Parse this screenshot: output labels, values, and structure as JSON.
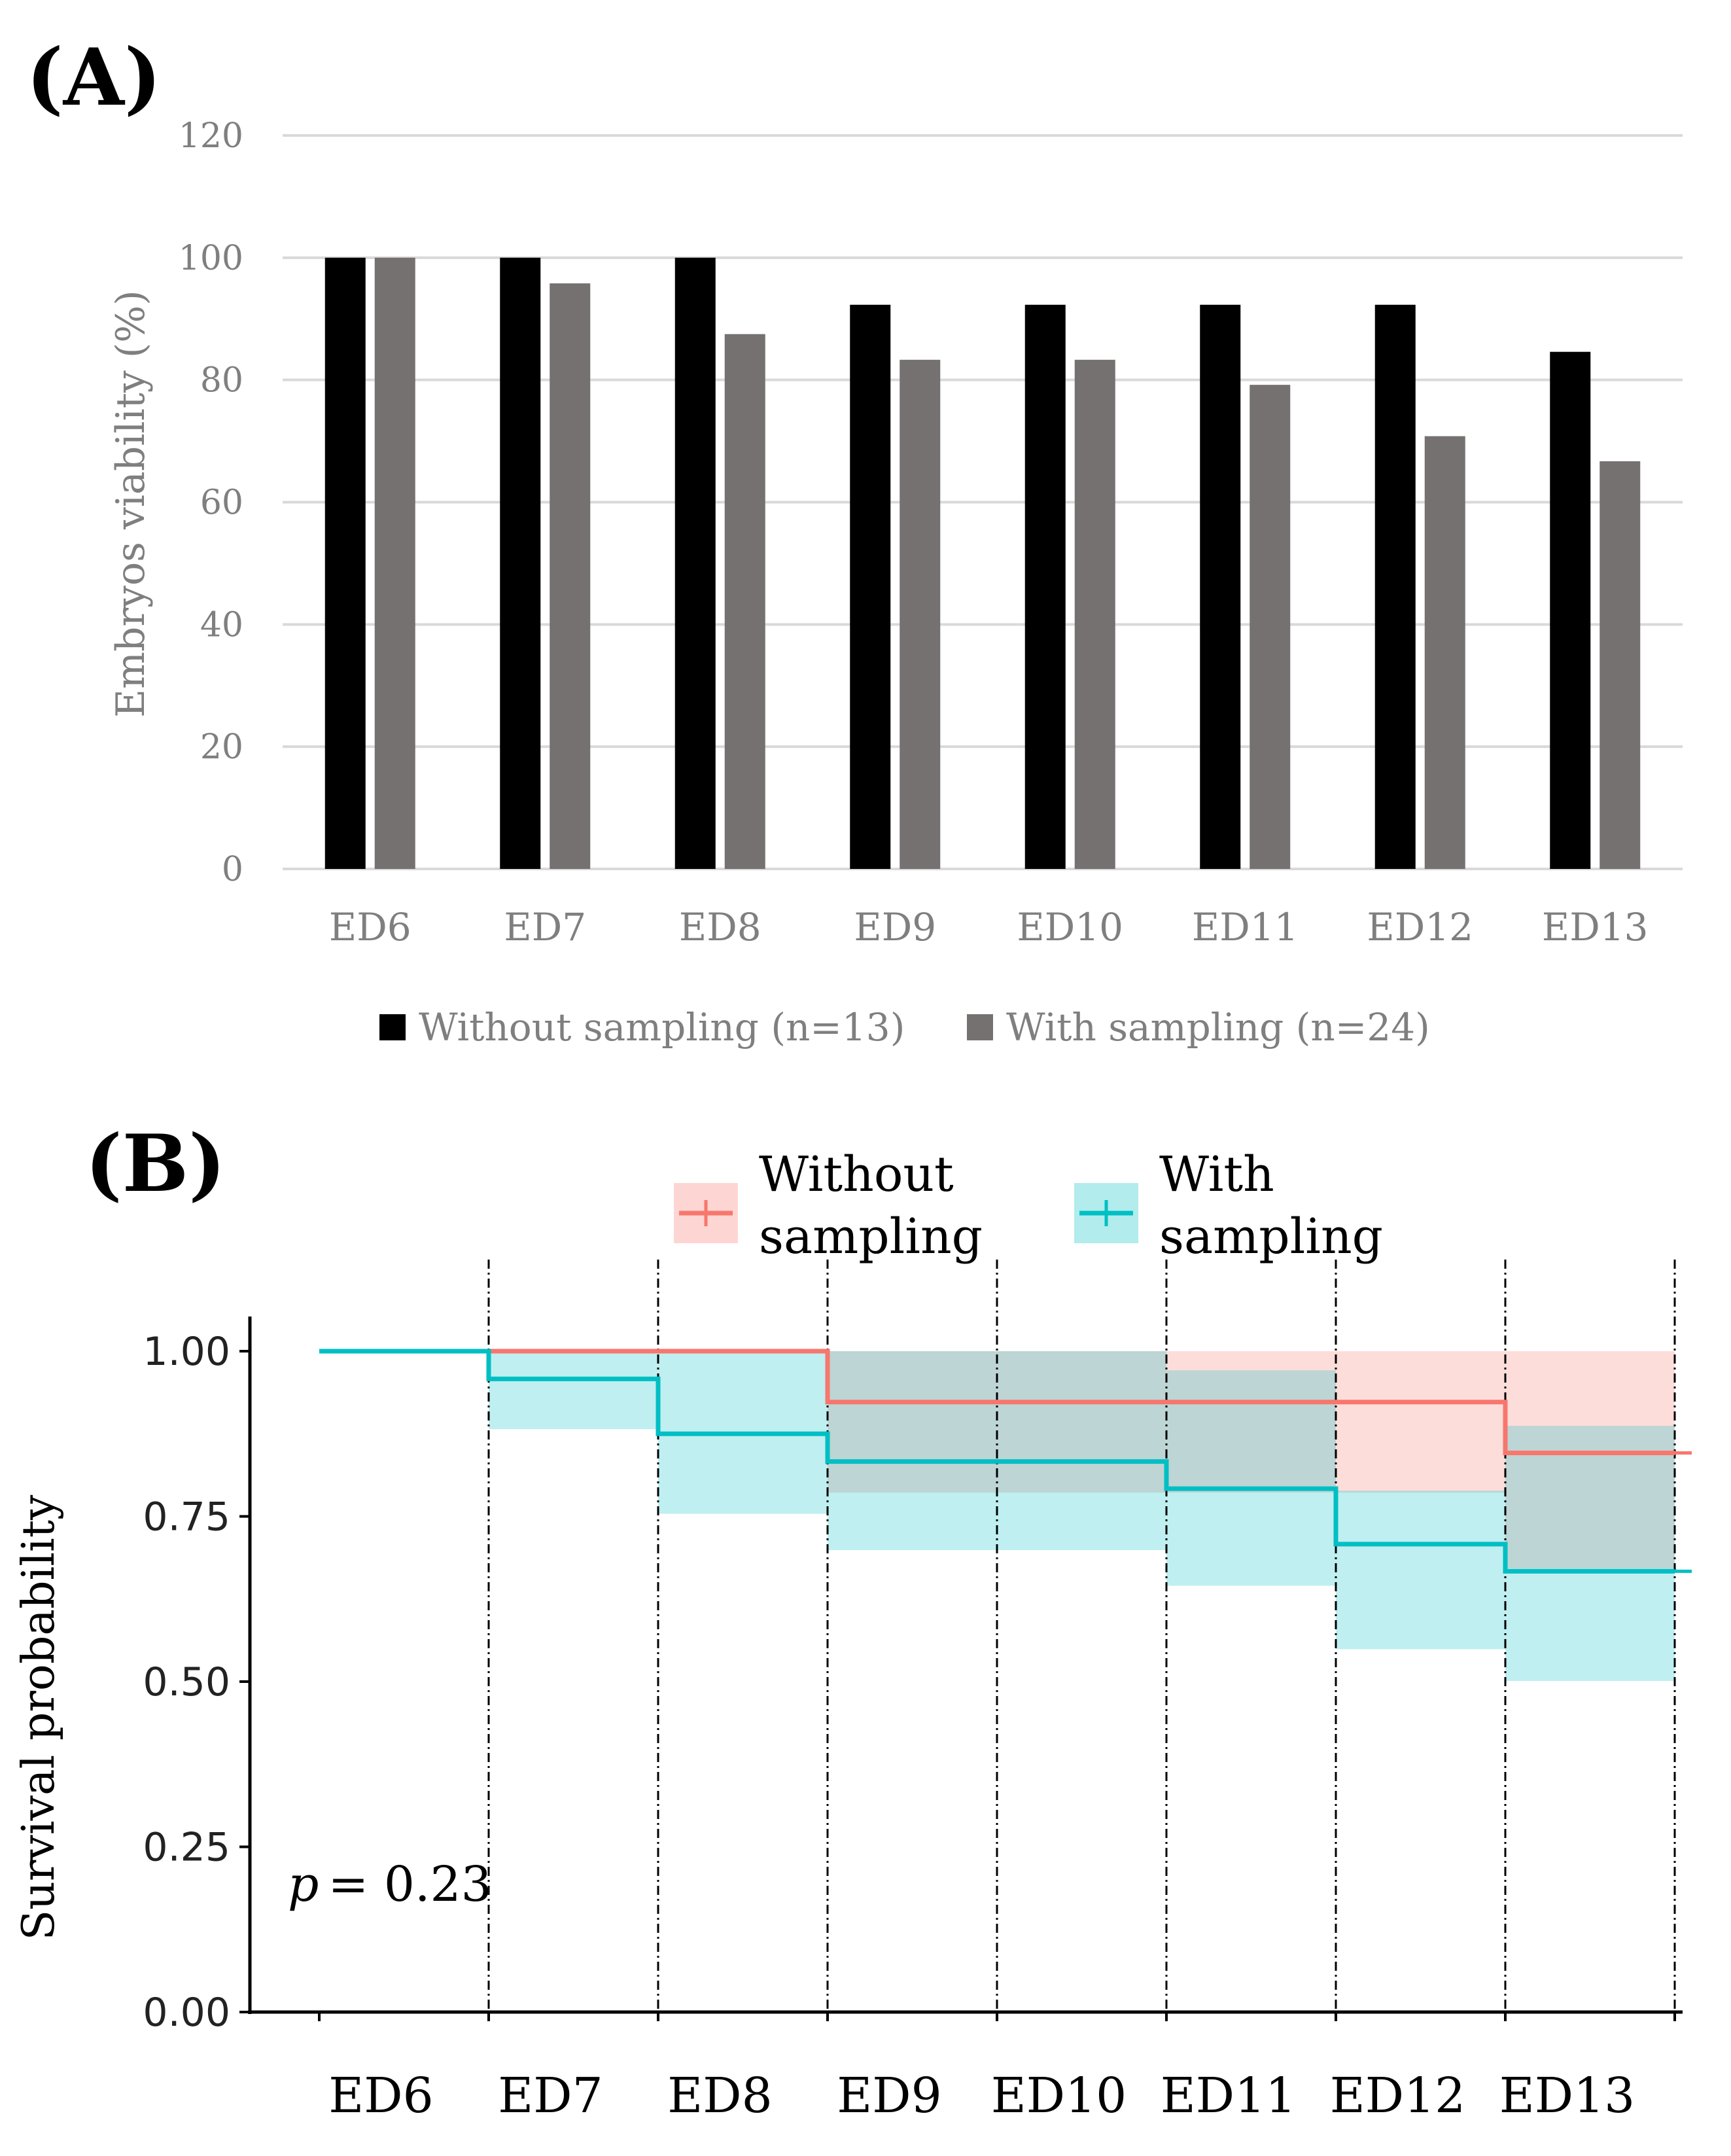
{
  "chart_data": [
    {
      "id": "A",
      "panel_label": "(A)",
      "type": "bar",
      "ylabel": "Embryos viability (%)",
      "ylim": [
        0,
        120
      ],
      "yticks": [
        0,
        20,
        40,
        60,
        80,
        100,
        120
      ],
      "grid": true,
      "categories": [
        "ED6",
        "ED7",
        "ED8",
        "ED9",
        "ED10",
        "ED11",
        "ED12",
        "ED13"
      ],
      "series": [
        {
          "name": "Without sampling (n=13)",
          "color": "#000000",
          "values": [
            100,
            100,
            100,
            92.3,
            92.3,
            92.3,
            92.3,
            84.6
          ]
        },
        {
          "name": "With sampling (n=24)",
          "color": "#767171",
          "values": [
            100,
            95.8,
            87.5,
            83.3,
            83.3,
            79.2,
            70.8,
            66.7
          ]
        }
      ],
      "legend": "bottom"
    },
    {
      "id": "B",
      "panel_label": "(B)",
      "type": "line",
      "subtype": "step",
      "ylabel": "Survival probability",
      "ylim": [
        0,
        1
      ],
      "yticks": [
        "0.00",
        "0.25",
        "0.50",
        "0.75",
        "1.00"
      ],
      "categories": [
        "ED6",
        "ED7",
        "ED8",
        "ED9",
        "ED10",
        "ED11",
        "ED12",
        "ED13"
      ],
      "x_range": [
        0,
        8
      ],
      "p_label": "p",
      "p_value": "= 0.23",
      "series": [
        {
          "name": "Without sampling",
          "legend_lines": [
            "Without",
            "sampling"
          ],
          "color": "#f8766d",
          "band_color": "#f8766d",
          "x": [
            0,
            3,
            7,
            8
          ],
          "y": [
            1.0,
            0.923,
            0.846,
            0.846
          ],
          "lower": [
            1.0,
            0.786,
            0.671,
            0.671
          ],
          "upper": [
            1.0,
            1.0,
            1.0,
            1.0
          ]
        },
        {
          "name": "With sampling",
          "legend_lines": [
            "With",
            "sampling"
          ],
          "color": "#00bfc4",
          "band_color": "#00bfc4",
          "x": [
            0,
            1,
            2,
            3,
            5,
            6,
            7,
            8
          ],
          "y": [
            1.0,
            0.958,
            0.875,
            0.833,
            0.792,
            0.708,
            0.667,
            0.667
          ],
          "lower": [
            1.0,
            0.882,
            0.754,
            0.699,
            0.645,
            0.549,
            0.501,
            0.501
          ],
          "upper": [
            1.0,
            1.0,
            1.0,
            1.0,
            0.971,
            0.789,
            0.887,
            0.887
          ]
        }
      ],
      "vlines_at": [
        1,
        2,
        3,
        4,
        5,
        6,
        7,
        8
      ]
    }
  ]
}
